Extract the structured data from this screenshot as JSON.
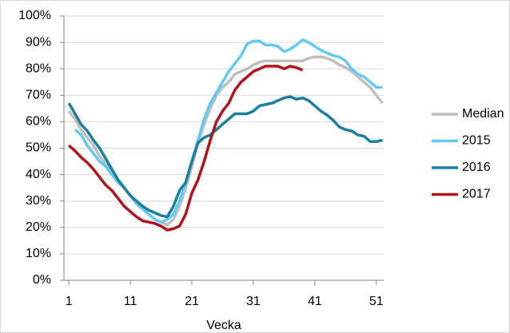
{
  "chart_data": {
    "type": "line",
    "x_label": "Vecka",
    "x": [
      1,
      2,
      3,
      4,
      5,
      6,
      7,
      8,
      9,
      10,
      11,
      12,
      13,
      14,
      15,
      16,
      17,
      18,
      19,
      20,
      21,
      22,
      23,
      24,
      25,
      26,
      27,
      28,
      29,
      30,
      31,
      32,
      33,
      34,
      35,
      36,
      37,
      38,
      39,
      40,
      41,
      42,
      43,
      44,
      45,
      46,
      47,
      48,
      49,
      50,
      51,
      52
    ],
    "series": [
      {
        "name": "Median",
        "color": "#bfbfbf",
        "values": [
          64,
          61,
          57,
          54,
          51,
          47,
          44,
          41,
          38,
          35,
          32,
          29,
          27,
          25,
          23,
          22,
          21,
          23,
          28,
          35,
          43,
          52,
          59,
          65,
          70,
          73,
          75,
          78,
          79,
          80,
          81.5,
          82.5,
          83,
          83,
          83,
          83,
          83,
          83,
          83,
          84,
          84.5,
          84.5,
          84,
          83,
          81.5,
          80.5,
          79,
          77,
          75,
          73,
          70,
          67
        ]
      },
      {
        "name": "2015",
        "color": "#62c9f5",
        "values": [
          null,
          57,
          55,
          51,
          48,
          45,
          43,
          40,
          37,
          35,
          32,
          29,
          27,
          25,
          23,
          22,
          23,
          25,
          30,
          37,
          45,
          53,
          61,
          67,
          71,
          75,
          79,
          82,
          85,
          89.5,
          90.5,
          90.5,
          89,
          89,
          88.5,
          86.5,
          87.5,
          89,
          91,
          90,
          88.5,
          87,
          86,
          85,
          84.5,
          83,
          80,
          78,
          77,
          75,
          73,
          73
        ]
      },
      {
        "name": "2016",
        "color": "#1b7fa0",
        "values": [
          67,
          63,
          59,
          56.5,
          53,
          50,
          46,
          42,
          38,
          35,
          32,
          30,
          28,
          26.5,
          25.5,
          24.5,
          24,
          28,
          34,
          37,
          45,
          52,
          54,
          55,
          57,
          59,
          61,
          63,
          63,
          63,
          64,
          66,
          66.5,
          67,
          68,
          69,
          69.5,
          68.5,
          69,
          68,
          66,
          64,
          62.5,
          60.5,
          58,
          57,
          56.5,
          55,
          54.5,
          52.5,
          52.5,
          53
        ]
      },
      {
        "name": "2017",
        "color": "#b0141c",
        "values": [
          51,
          49,
          46.5,
          44.5,
          42,
          39,
          36,
          34,
          31,
          28,
          26,
          24,
          22.5,
          22,
          21.5,
          20.5,
          19,
          19.5,
          20.5,
          25,
          33,
          38,
          45,
          53,
          60,
          64,
          67,
          72,
          75,
          77,
          79,
          80,
          81,
          81,
          81,
          80,
          81,
          80.5,
          79.5,
          null,
          null,
          null,
          null,
          null,
          null,
          null,
          null,
          null,
          null,
          null,
          null,
          null
        ]
      }
    ],
    "xlim": [
      0.2,
      52.2
    ],
    "xticks": [
      1,
      11,
      21,
      31,
      41,
      51
    ],
    "ylim": [
      0,
      100
    ],
    "yticks": [
      {
        "value": 0,
        "label": "0%"
      },
      {
        "value": 10,
        "label": "10%"
      },
      {
        "value": 20,
        "label": "20%"
      },
      {
        "value": 30,
        "label": "30%"
      },
      {
        "value": 40,
        "label": "40%"
      },
      {
        "value": 50,
        "label": "50%"
      },
      {
        "value": 60,
        "label": "60%"
      },
      {
        "value": 70,
        "label": "70%"
      },
      {
        "value": 80,
        "label": "80%"
      },
      {
        "value": 90,
        "label": "90%"
      },
      {
        "value": 100,
        "label": "100%"
      }
    ],
    "grid": true,
    "legend": "right"
  }
}
